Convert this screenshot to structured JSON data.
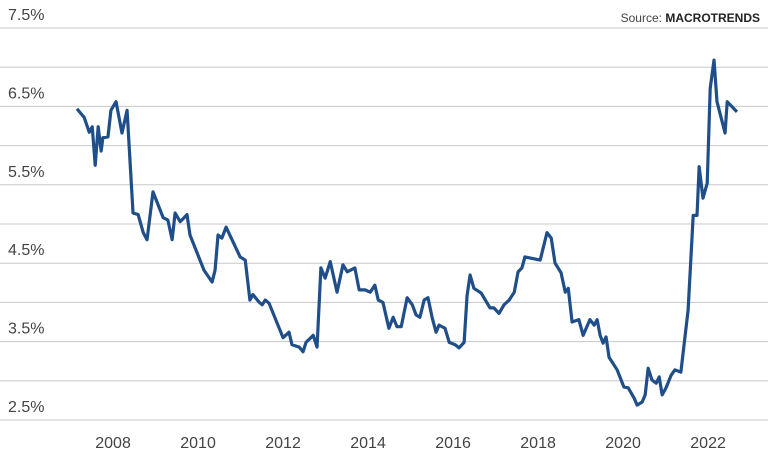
{
  "chart_data": {
    "type": "line",
    "source_prefix": "Source:",
    "source_name": "MACROTRENDS",
    "x": [
      2007.15,
      2007.32,
      2007.44,
      2007.51,
      2007.58,
      2007.65,
      2007.72,
      2007.76,
      2007.88,
      2007.95,
      2008.07,
      2008.21,
      2008.33,
      2008.47,
      2008.59,
      2008.71,
      2008.8,
      2008.94,
      2009.18,
      2009.29,
      2009.39,
      2009.46,
      2009.58,
      2009.67,
      2009.74,
      2009.81,
      2010.14,
      2010.33,
      2010.4,
      2010.47,
      2010.56,
      2010.66,
      2010.99,
      2011.11,
      2011.22,
      2011.29,
      2011.44,
      2011.51,
      2011.58,
      2011.67,
      2012.0,
      2012.14,
      2012.21,
      2012.38,
      2012.47,
      2012.54,
      2012.71,
      2012.8,
      2012.89,
      2012.99,
      2013.11,
      2013.27,
      2013.41,
      2013.51,
      2013.69,
      2013.79,
      2013.93,
      2014.05,
      2014.16,
      2014.24,
      2014.35,
      2014.49,
      2014.59,
      2014.68,
      2014.78,
      2014.92,
      2015.04,
      2015.13,
      2015.22,
      2015.32,
      2015.41,
      2015.51,
      2015.6,
      2015.67,
      2015.81,
      2015.91,
      2016.05,
      2016.14,
      2016.26,
      2016.33,
      2016.4,
      2016.49,
      2016.66,
      2016.87,
      2016.96,
      2017.08,
      2017.2,
      2017.32,
      2017.44,
      2017.53,
      2017.62,
      2017.69,
      2018.05,
      2018.21,
      2018.31,
      2018.4,
      2018.54,
      2018.64,
      2018.71,
      2018.8,
      2018.96,
      2019.06,
      2019.22,
      2019.32,
      2019.39,
      2019.46,
      2019.53,
      2019.6,
      2019.67,
      2019.86,
      2020.02,
      2020.12,
      2020.26,
      2020.33,
      2020.45,
      2020.52,
      2020.59,
      2020.68,
      2020.78,
      2020.85,
      2020.92,
      2021.01,
      2021.13,
      2021.22,
      2021.36,
      2021.53,
      2021.65,
      2021.74,
      2021.79,
      2021.88,
      2021.98,
      2022.05,
      2022.14,
      2022.21,
      2022.4,
      2022.45,
      2022.68
    ],
    "series": [
      {
        "color": "#1f4e89",
        "values": [
          6.47,
          6.36,
          6.17,
          6.24,
          5.75,
          6.24,
          5.93,
          6.1,
          6.11,
          6.45,
          6.56,
          6.16,
          6.45,
          5.14,
          5.12,
          4.89,
          4.8,
          5.41,
          5.08,
          5.05,
          4.8,
          5.14,
          5.03,
          5.08,
          5.12,
          4.86,
          4.41,
          4.26,
          4.41,
          4.86,
          4.82,
          4.96,
          4.58,
          4.54,
          4.03,
          4.1,
          4.0,
          3.97,
          4.03,
          3.99,
          3.55,
          3.62,
          3.46,
          3.43,
          3.37,
          3.49,
          3.58,
          3.43,
          4.44,
          4.31,
          4.52,
          4.13,
          4.48,
          4.39,
          4.44,
          4.16,
          4.16,
          4.13,
          4.22,
          4.03,
          4.0,
          3.67,
          3.81,
          3.69,
          3.69,
          4.06,
          3.97,
          3.84,
          3.81,
          4.03,
          4.06,
          3.8,
          3.62,
          3.71,
          3.67,
          3.49,
          3.46,
          3.42,
          3.49,
          4.09,
          4.35,
          4.18,
          4.12,
          3.93,
          3.93,
          3.86,
          3.97,
          4.03,
          4.13,
          4.39,
          4.44,
          4.58,
          4.54,
          4.89,
          4.82,
          4.5,
          4.38,
          4.13,
          4.18,
          3.75,
          3.78,
          3.58,
          3.78,
          3.71,
          3.78,
          3.58,
          3.48,
          3.56,
          3.3,
          3.14,
          2.92,
          2.91,
          2.78,
          2.69,
          2.73,
          2.82,
          3.16,
          3.01,
          2.97,
          3.05,
          2.82,
          2.91,
          3.07,
          3.14,
          3.11,
          3.9,
          5.11,
          5.11,
          5.73,
          5.33,
          5.52,
          6.73,
          7.09,
          6.56,
          6.16,
          6.56,
          6.43
        ]
      }
    ],
    "xlim": [
      2005.34,
      2023.41
    ],
    "xticks": [
      2008,
      2010,
      2012,
      2014,
      2016,
      2018,
      2020,
      2022
    ],
    "ylim": [
      2.5,
      7.5
    ],
    "yticks": [
      {
        "value": 2.5,
        "label": "2.5%"
      },
      {
        "value": 3.5,
        "label": "3.5%"
      },
      {
        "value": 4.5,
        "label": "4.5%"
      },
      {
        "value": 5.5,
        "label": "5.5%"
      },
      {
        "value": 6.5,
        "label": "6.5%"
      },
      {
        "value": 7.5,
        "label": "7.5%"
      }
    ],
    "minor_yticks": [
      3,
      4,
      5,
      6,
      7
    ],
    "grid": true
  }
}
